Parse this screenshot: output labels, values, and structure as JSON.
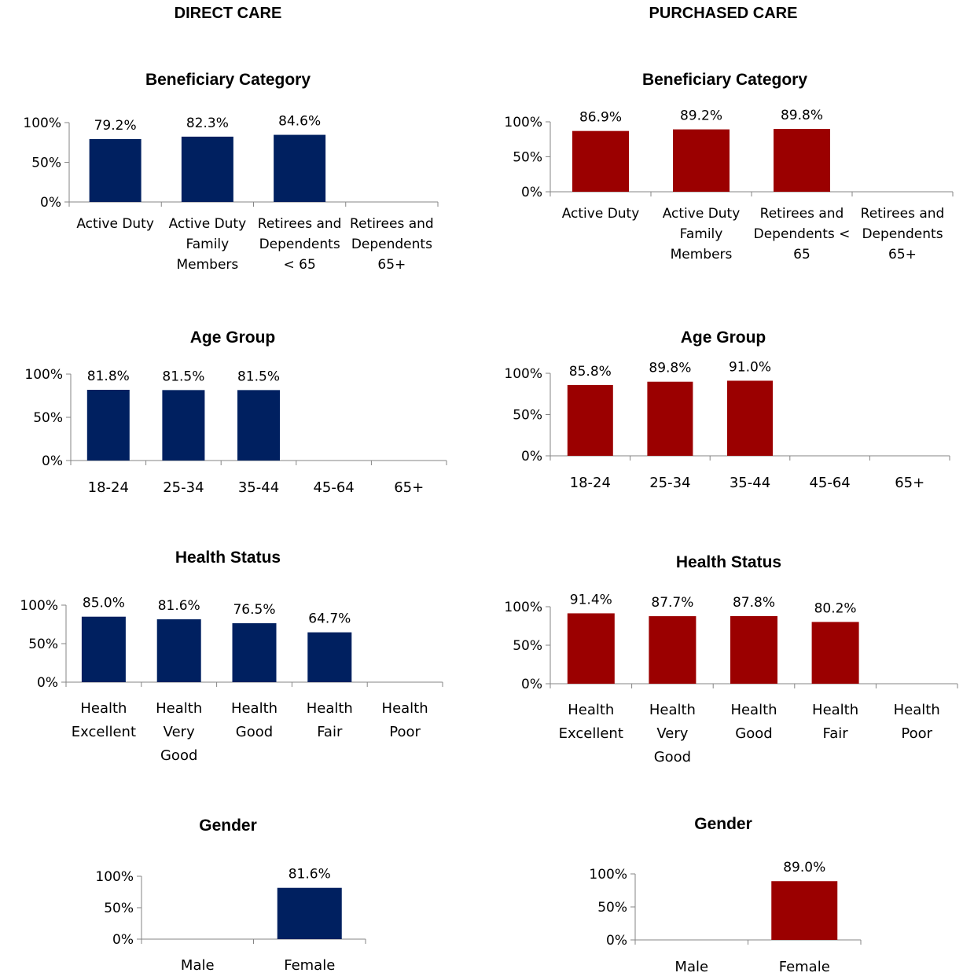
{
  "columns": [
    "DIRECT CARE",
    "PURCHASED CARE"
  ],
  "colors": {
    "direct": "#002060",
    "purchased": "#9b0000",
    "axis": "#868686"
  },
  "chart_data": [
    {
      "id": "dc-beneficiary",
      "type": "bar",
      "title": "Beneficiary Category",
      "categories": [
        [
          "Active Duty"
        ],
        [
          "Active Duty",
          "Family",
          "Members"
        ],
        [
          "Retirees and",
          "Dependents",
          "< 65"
        ],
        [
          "Retirees and",
          "Dependents",
          "65+"
        ]
      ],
      "values": [
        79.2,
        82.3,
        84.6,
        null
      ],
      "labels": [
        "79.2%",
        "82.3%",
        "84.6%",
        ""
      ],
      "yticks": [
        "0%",
        "50%",
        "100%"
      ],
      "ylim": [
        0,
        100
      ],
      "color": "#002060"
    },
    {
      "id": "pc-beneficiary",
      "type": "bar",
      "title": "Beneficiary Category",
      "categories": [
        [
          "Active Duty"
        ],
        [
          "Active Duty",
          "Family",
          "Members"
        ],
        [
          "Retirees and",
          "Dependents <",
          "65"
        ],
        [
          "Retirees and",
          "Dependents",
          "65+"
        ]
      ],
      "values": [
        86.9,
        89.2,
        89.8,
        null
      ],
      "labels": [
        "86.9%",
        "89.2%",
        "89.8%",
        ""
      ],
      "yticks": [
        "0%",
        "50%",
        "100%"
      ],
      "ylim": [
        0,
        100
      ],
      "color": "#9b0000"
    },
    {
      "id": "dc-age",
      "type": "bar",
      "title": "Age Group",
      "categories": [
        [
          "18-24"
        ],
        [
          "25-34"
        ],
        [
          "35-44"
        ],
        [
          "45-64"
        ],
        [
          "65+"
        ]
      ],
      "values": [
        81.8,
        81.5,
        81.5,
        null,
        null
      ],
      "labels": [
        "81.8%",
        "81.5%",
        "81.5%",
        "",
        ""
      ],
      "yticks": [
        "0%",
        "50%",
        "100%"
      ],
      "ylim": [
        0,
        100
      ],
      "color": "#002060"
    },
    {
      "id": "pc-age",
      "type": "bar",
      "title": "Age Group",
      "categories": [
        [
          "18-24"
        ],
        [
          "25-34"
        ],
        [
          "35-44"
        ],
        [
          "45-64"
        ],
        [
          "65+"
        ]
      ],
      "values": [
        85.8,
        89.8,
        91.0,
        null,
        null
      ],
      "labels": [
        "85.8%",
        "89.8%",
        "91.0%",
        "",
        ""
      ],
      "yticks": [
        "0%",
        "50%",
        "100%"
      ],
      "ylim": [
        0,
        100
      ],
      "color": "#9b0000"
    },
    {
      "id": "dc-health",
      "type": "bar",
      "title": "Health Status",
      "categories": [
        [
          "Health",
          "Excellent"
        ],
        [
          "Health",
          "Very",
          "Good"
        ],
        [
          "Health",
          "Good"
        ],
        [
          "Health",
          "Fair"
        ],
        [
          "Health",
          "Poor"
        ]
      ],
      "values": [
        85.0,
        81.6,
        76.5,
        64.7,
        null
      ],
      "labels": [
        "85.0%",
        "81.6%",
        "76.5%",
        "64.7%",
        ""
      ],
      "yticks": [
        "0%",
        "50%",
        "100%"
      ],
      "ylim": [
        0,
        100
      ],
      "color": "#002060"
    },
    {
      "id": "pc-health",
      "type": "bar",
      "title": "Health Status",
      "categories": [
        [
          "Health",
          "Excellent"
        ],
        [
          "Health",
          "Very",
          "Good"
        ],
        [
          "Health",
          "Good"
        ],
        [
          "Health",
          "Fair"
        ],
        [
          "Health",
          "Poor"
        ]
      ],
      "values": [
        91.4,
        87.7,
        87.8,
        80.2,
        null
      ],
      "labels": [
        "91.4%",
        "87.7%",
        "87.8%",
        "80.2%",
        ""
      ],
      "yticks": [
        "0%",
        "50%",
        "100%"
      ],
      "ylim": [
        0,
        100
      ],
      "color": "#9b0000"
    },
    {
      "id": "dc-gender",
      "type": "bar",
      "title": "Gender",
      "categories": [
        [
          "Male"
        ],
        [
          "Female"
        ]
      ],
      "values": [
        null,
        81.6
      ],
      "labels": [
        "",
        "81.6%"
      ],
      "yticks": [
        "0%",
        "50%",
        "100%"
      ],
      "ylim": [
        0,
        100
      ],
      "color": "#002060"
    },
    {
      "id": "pc-gender",
      "type": "bar",
      "title": "Gender",
      "categories": [
        [
          "Male"
        ],
        [
          "Female"
        ]
      ],
      "values": [
        null,
        89.0
      ],
      "labels": [
        "",
        "89.0%"
      ],
      "yticks": [
        "0%",
        "50%",
        "100%"
      ],
      "ylim": [
        0,
        100
      ],
      "color": "#9b0000"
    }
  ]
}
